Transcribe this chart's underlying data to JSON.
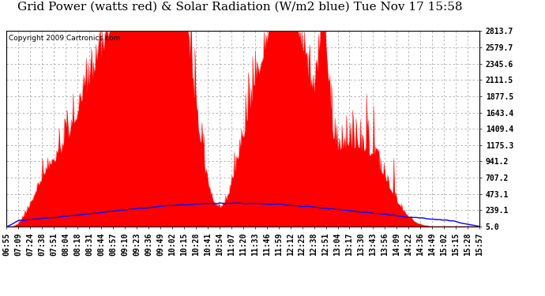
{
  "title": "Grid Power (watts red) & Solar Radiation (W/m2 blue) Tue Nov 17 15:58",
  "copyright": "Copyright 2009 Cartronics.com",
  "yticks": [
    5.0,
    239.1,
    473.1,
    707.2,
    941.2,
    1175.3,
    1409.4,
    1643.4,
    1877.5,
    2111.5,
    2345.6,
    2579.7,
    2813.7
  ],
  "ymin": 5.0,
  "ymax": 2813.7,
  "background_color": "#ffffff",
  "plot_bg_color": "#ffffff",
  "grid_color": "#aaaaaa",
  "red_color": "#ff0000",
  "blue_color": "#0000ff",
  "title_fontsize": 11,
  "copyright_fontsize": 6.5,
  "tick_fontsize": 7,
  "xtick_labels": [
    "06:55",
    "07:09",
    "07:24",
    "07:38",
    "07:51",
    "08:04",
    "08:18",
    "08:31",
    "08:44",
    "08:57",
    "09:10",
    "09:23",
    "09:36",
    "09:49",
    "10:02",
    "10:15",
    "10:28",
    "10:41",
    "10:54",
    "11:07",
    "11:20",
    "11:33",
    "11:46",
    "11:59",
    "12:12",
    "12:25",
    "12:38",
    "12:51",
    "13:04",
    "13:17",
    "13:30",
    "13:43",
    "13:56",
    "14:09",
    "14:22",
    "14:36",
    "14:49",
    "15:02",
    "15:15",
    "15:28",
    "15:57"
  ]
}
